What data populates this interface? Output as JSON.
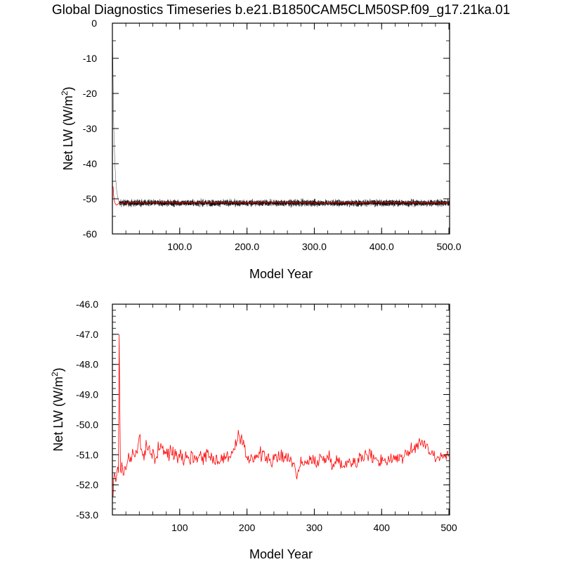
{
  "title": "Global Diagnostics Timeseries b.e21.B1850CAM5CLM50SP.f09_g17.21ka.01",
  "colors": {
    "monthly": "#000000",
    "annual": "#ff0000",
    "axis": "#000000"
  },
  "chart_data": [
    {
      "type": "line",
      "panel": "top",
      "xlabel": "Model Year",
      "ylabel": "Net LW (W/m²)",
      "ylabel_main": "Net LW (W/m",
      "ylabel_sup": "2",
      "ylabel_close": ")",
      "xlim": [
        0,
        501
      ],
      "ylim": [
        -60,
        0
      ],
      "xticks": [
        100,
        200,
        300,
        400,
        500
      ],
      "xtick_labels": [
        "100.0",
        "200.0",
        "300.0",
        "400.0",
        "500.0"
      ],
      "yticks": [
        0,
        -10,
        -20,
        -30,
        -40,
        -50,
        -60
      ],
      "ytick_labels": [
        "0",
        "-10",
        "-20",
        "-30",
        "-40",
        "-50",
        "-60"
      ],
      "grid": false,
      "series": [
        {
          "description": "monthly mean (black), approx. values",
          "spinup": {
            "x": [
              0,
              0.5,
              1,
              1.5,
              2,
              3,
              4,
              5,
              6,
              7,
              8,
              9,
              10
            ],
            "y": [
              -1,
              -8,
              -16,
              -23,
              -29,
              -36,
              -41,
              -44.5,
              -47,
              -48.5,
              -49.5,
              -50.3,
              -50.8
            ]
          },
          "equilibrium": {
            "mean": -51.2,
            "spread": 1.6,
            "x_from": 10,
            "x_to": 501
          }
        },
        {
          "description": "annual mean (red), approx. values",
          "x": [
            1,
            2,
            3,
            4,
            5,
            6,
            7,
            8,
            9,
            10,
            12,
            15,
            20,
            25,
            30,
            40,
            50,
            75,
            100,
            150,
            200,
            250,
            300,
            350,
            400,
            450,
            500
          ],
          "y": [
            -46.5,
            -49.3,
            -50.6,
            -51.3,
            -51.6,
            -51.8,
            -51.7,
            -51.5,
            -51.4,
            -51.3,
            -51.3,
            -51.2,
            -51.3,
            -51.0,
            -51.1,
            -51.0,
            -51.1,
            -51.0,
            -51.1,
            -51.0,
            -51.1,
            -51.0,
            -51.1,
            -51.1,
            -51.0,
            -51.1,
            -51.1
          ]
        }
      ]
    },
    {
      "type": "line",
      "panel": "bottom",
      "xlabel": "Model Year",
      "ylabel": "Net LW (W/m²)",
      "ylabel_main": "Net LW (W/m",
      "ylabel_sup": "2",
      "ylabel_close": ")",
      "xlim": [
        0,
        501
      ],
      "ylim": [
        -53,
        -46
      ],
      "xticks": [
        100,
        200,
        300,
        400,
        500
      ],
      "xtick_labels": [
        "100",
        "200",
        "300",
        "400",
        "500"
      ],
      "yticks": [
        -46,
        -47,
        -48,
        -49,
        -50,
        -51,
        -52,
        -53
      ],
      "ytick_labels": [
        "-46.0",
        "-47.0",
        "-48.0",
        "-49.0",
        "-50.0",
        "-51.0",
        "-52.0",
        "-53.0"
      ],
      "grid": false,
      "series": [
        {
          "description": "annual mean (red), approx. values",
          "x": [
            1,
            2,
            3,
            4,
            5,
            6,
            7,
            8,
            9,
            10,
            12,
            14,
            16,
            18,
            20,
            22,
            25,
            28,
            30,
            33,
            36,
            40,
            45,
            50,
            55,
            60,
            65,
            70,
            80,
            90,
            100,
            120,
            140,
            160,
            180,
            189,
            200,
            220,
            240,
            260,
            275,
            280,
            300,
            320,
            340,
            360,
            380,
            400,
            420,
            440,
            460,
            480,
            500
          ],
          "y": [
            -52.4,
            -51.8,
            -51.6,
            -51.7,
            -51.9,
            -51.8,
            -51.5,
            -51.4,
            -51.6,
            -47.0,
            -51.5,
            -51.4,
            -51.8,
            -51.3,
            -51.5,
            -51.2,
            -51.0,
            -51.3,
            -50.8,
            -51.1,
            -50.9,
            -50.4,
            -51.1,
            -50.9,
            -50.8,
            -51.0,
            -51.1,
            -50.7,
            -51.0,
            -50.9,
            -51.0,
            -51.1,
            -51.0,
            -51.2,
            -50.9,
            -50.4,
            -51.1,
            -51.0,
            -51.2,
            -51.0,
            -51.6,
            -51.3,
            -51.2,
            -51.1,
            -51.3,
            -51.2,
            -51.0,
            -51.2,
            -51.1,
            -51.0,
            -50.5,
            -51.1,
            -51.0
          ],
          "noise": 0.55
        }
      ]
    }
  ]
}
